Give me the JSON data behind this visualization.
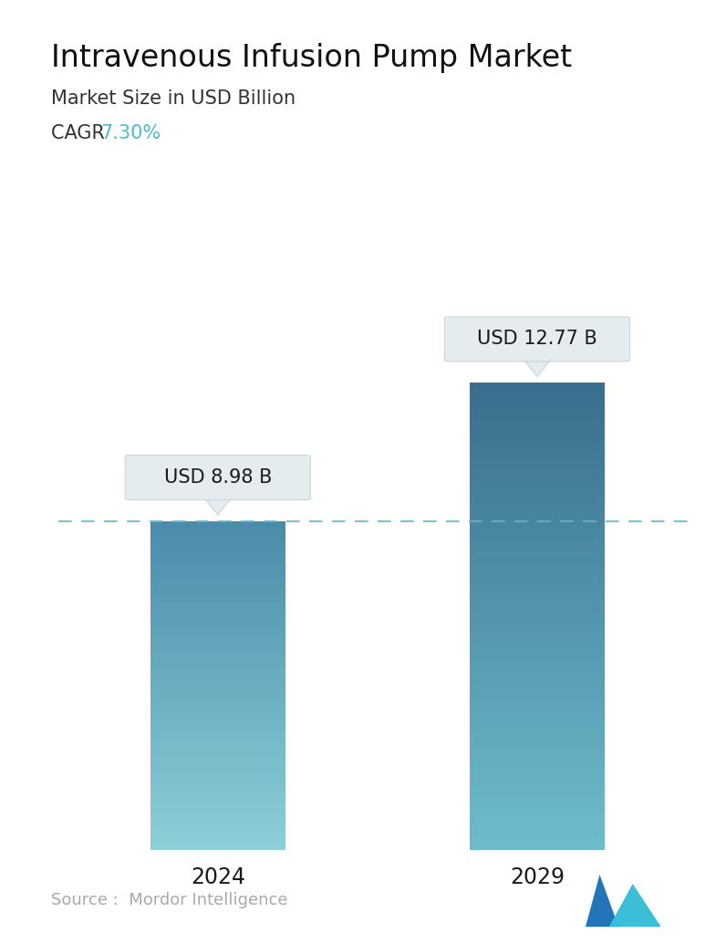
{
  "title": "Intravenous Infusion Pump Market",
  "subtitle": "Market Size in USD Billion",
  "cagr_label": "CAGR  ",
  "cagr_value": "7.30%",
  "cagr_color": "#4cb8d4",
  "categories": [
    "2024",
    "2029"
  ],
  "values": [
    8.98,
    12.77
  ],
  "label_texts": [
    "USD 8.98 B",
    "USD 12.77 B"
  ],
  "bar_configs": [
    {
      "top": "#4a8caa",
      "bottom": "#8dd0d8"
    },
    {
      "top": "#3b6e8e",
      "bottom": "#6dbdcc"
    }
  ],
  "dashed_line_color": "#6ab5cc",
  "dashed_line_value": 8.98,
  "source_text": "Source :  Mordor Intelligence",
  "source_color": "#aaaaaa",
  "background_color": "#ffffff",
  "title_fontsize": 24,
  "subtitle_fontsize": 15,
  "cagr_fontsize": 15,
  "tick_fontsize": 17,
  "label_fontsize": 15,
  "ylim_max": 15.5,
  "bar_positions": [
    0,
    1
  ],
  "bar_width": 0.42,
  "callout_facecolor": "#e4ecf0",
  "callout_edgecolor": "#c8d8e0",
  "logo_left_color": "#2175b8",
  "logo_right_color": "#3bbfd8"
}
